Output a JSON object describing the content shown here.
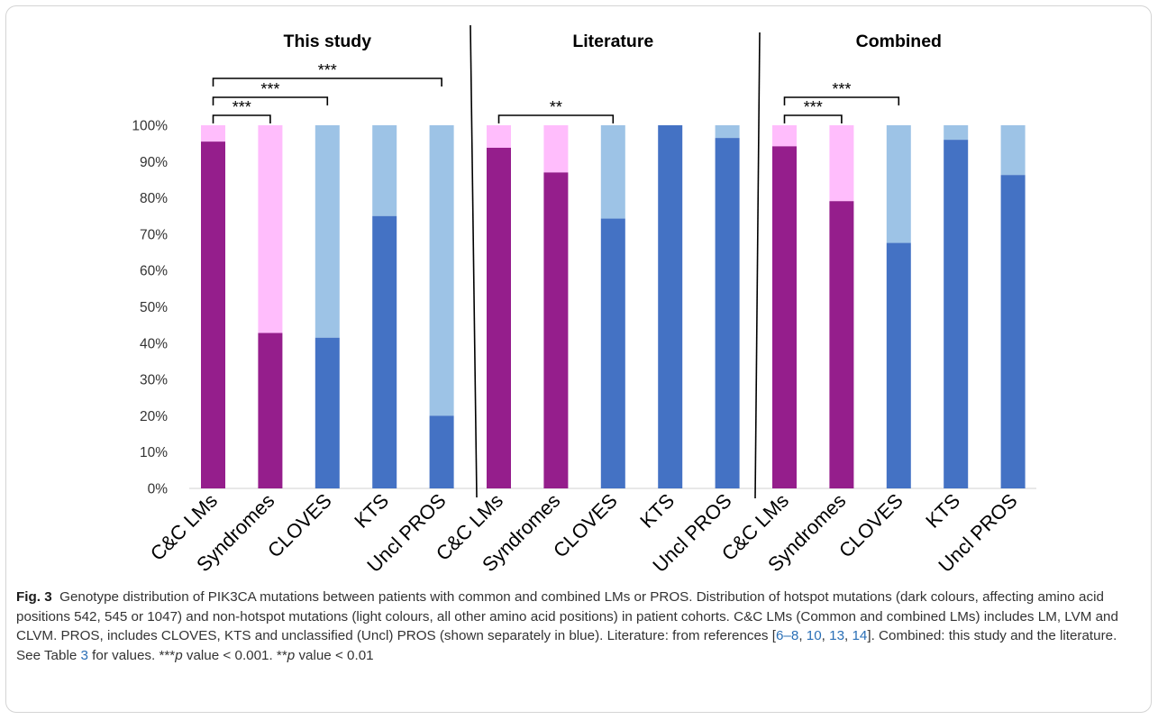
{
  "colors": {
    "hotspot_syndromic": "#951e8c",
    "nonhotspot_syndromic": "#ffbdfc",
    "hotspot_pros": "#4472c4",
    "nonhotspot_pros": "#9dc3e6",
    "divider": "#000000",
    "grid": "#d9d9d9"
  },
  "chart_data": {
    "type": "bar",
    "stacked": true,
    "ylim": [
      0,
      100
    ],
    "yticks": [
      "0%",
      "10%",
      "20%",
      "30%",
      "40%",
      "50%",
      "60%",
      "70%",
      "80%",
      "90%",
      "100%"
    ],
    "panels": [
      {
        "title": "This study",
        "categories": [
          "C&C LMs",
          "Syndromes",
          "CLOVES",
          "KTS",
          "Uncl PROS"
        ],
        "hotspot": [
          95.5,
          42.8,
          41.5,
          75,
          20
        ],
        "kind": [
          "syndromic",
          "syndromic",
          "pros",
          "pros",
          "pros"
        ],
        "brackets": [
          {
            "from": 0,
            "to": 1,
            "label": "***"
          },
          {
            "from": 0,
            "to": 2,
            "label": "***"
          },
          {
            "from": 0,
            "to": 4,
            "label": "***"
          }
        ]
      },
      {
        "title": "Literature",
        "categories": [
          "C&C LMs",
          "Syndromes",
          "CLOVES",
          "KTS",
          "Uncl PROS"
        ],
        "hotspot": [
          93.8,
          87,
          74.3,
          100,
          96.5
        ],
        "kind": [
          "syndromic",
          "syndromic",
          "pros",
          "pros",
          "pros"
        ],
        "brackets": [
          {
            "from": 0,
            "to": 2,
            "label": "**"
          }
        ]
      },
      {
        "title": "Combined",
        "categories": [
          "C&C LMs",
          "Syndromes",
          "CLOVES",
          "KTS",
          "Uncl PROS"
        ],
        "hotspot": [
          94.2,
          79.1,
          67.6,
          96,
          86.3
        ],
        "kind": [
          "syndromic",
          "syndromic",
          "pros",
          "pros",
          "pros"
        ],
        "brackets": [
          {
            "from": 0,
            "to": 1,
            "label": "***"
          },
          {
            "from": 0,
            "to": 2,
            "label": "***"
          }
        ]
      }
    ]
  },
  "caption": {
    "fig_label": "Fig. 3",
    "text_1": "Genotype distribution of PIK3CA mutations between patients with common and combined LMs or PROS. Distribution of hotspot mutations (dark colours, affecting amino acid positions 542, 545 or 1047) and non-hotspot mutations (light colours, all other amino acid positions) in patient cohorts. C&C LMs (Common and combined LMs) includes LM, LVM and CLVM. PROS, includes CLOVES, KTS and unclassified (Uncl) PROS (shown separately in blue). Literature: from references [",
    "refs_a": "6–8",
    "sep_1": ", ",
    "ref_10": "10",
    "sep_2": ", ",
    "ref_13": "13",
    "sep_3": ", ",
    "ref_14": "14",
    "text_2": "]. Combined: this study and the literature. See Table ",
    "ref_table": "3",
    "text_3": " for values. ***",
    "p1": "p",
    "text_4": " value < 0.001. **",
    "p2": "p",
    "text_5": " value < 0.01"
  }
}
